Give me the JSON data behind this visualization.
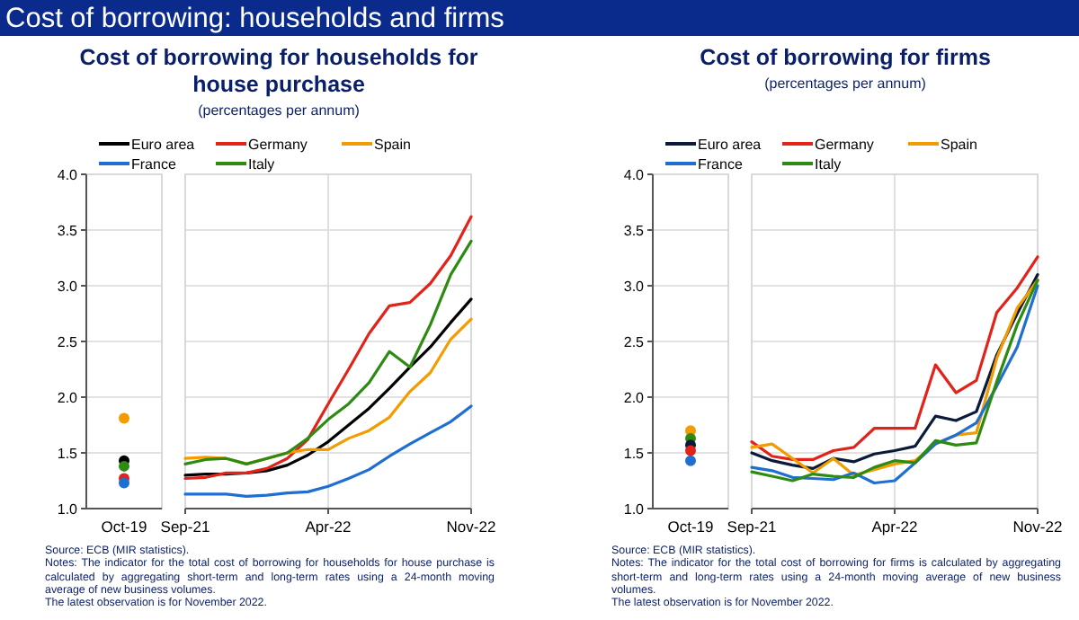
{
  "chart_data": [
    {
      "type": "line",
      "title": "Cost of borrowing for households for house purchase",
      "subtitle": "(percentages per annum)",
      "annotations": [
        "Cost of borrowing: households and firms",
        "Source: ECB (MIR statistics).",
        "Notes: The indicator for the total cost of borrowing for households for house purchase is calculated by aggregating short-term and long-term rates using a 24-month moving average of new business volumes.",
        "The latest observation is for November 2022."
      ],
      "categories": [
        "Oct-19",
        "Sep-21",
        null,
        null,
        null,
        null,
        null,
        null,
        "Apr-22",
        null,
        null,
        null,
        null,
        null,
        null,
        "Nov-22"
      ],
      "series": [
        {
          "name": "Euro area",
          "color": "#000000",
          "values": [
            null,
            1.3,
            1.31,
            1.31,
            1.32,
            1.34,
            1.39,
            1.48,
            1.6,
            1.75,
            1.9,
            2.08,
            2.27,
            2.45,
            2.67,
            2.88
          ]
        },
        {
          "name": "Germany",
          "color": "#e2231a",
          "values": [
            null,
            1.27,
            1.28,
            1.32,
            1.32,
            1.36,
            1.45,
            1.62,
            1.94,
            2.25,
            2.57,
            2.82,
            2.85,
            3.02,
            3.27,
            3.62
          ]
        },
        {
          "name": "Spain",
          "color": "#f29c00",
          "values": [
            null,
            1.45,
            1.46,
            1.45,
            1.4,
            1.45,
            1.5,
            1.53,
            1.53,
            1.63,
            1.7,
            1.82,
            2.05,
            2.22,
            2.52,
            2.7
          ]
        },
        {
          "name": "France",
          "color": "#1f6fd0",
          "values": [
            null,
            1.13,
            1.13,
            1.13,
            1.11,
            1.12,
            1.14,
            1.15,
            1.2,
            1.27,
            1.35,
            1.47,
            1.58,
            1.68,
            1.78,
            1.92
          ]
        },
        {
          "name": "Italy",
          "color": "#2e8b12",
          "values": [
            null,
            1.4,
            1.44,
            1.45,
            1.4,
            1.45,
            1.5,
            1.63,
            1.8,
            1.94,
            2.13,
            2.41,
            2.27,
            2.65,
            3.1,
            3.4
          ]
        },
        {
          "type": "scatter",
          "color": "#f29c00",
          "x": [
            "Oct-19"
          ],
          "values": [
            1.81
          ]
        },
        {
          "type": "scatter",
          "color": "#000000",
          "x": [
            "Oct-19"
          ],
          "values": [
            1.43
          ]
        },
        {
          "type": "scatter",
          "color": "#2e8b12",
          "x": [
            "Oct-19"
          ],
          "values": [
            1.38
          ]
        },
        {
          "type": "scatter",
          "color": "#e2231a",
          "x": [
            "Oct-19"
          ],
          "values": [
            1.27
          ]
        },
        {
          "type": "scatter",
          "color": "#1f6fd0",
          "x": [
            "Oct-19"
          ],
          "values": [
            1.23
          ]
        }
      ],
      "ylim": [
        1.0,
        4.0
      ],
      "yticks": [
        {
          "value": 1.0,
          "label": "1.0"
        },
        1.5,
        {
          "value": 2.0,
          "label": "2.0"
        },
        2.5,
        {
          "value": 3.0,
          "label": "3.0"
        },
        3.5,
        {
          "value": 4.0,
          "label": "4.0"
        }
      ],
      "grid": true,
      "legend": "top",
      "line_style": "solid"
    },
    {
      "type": "line",
      "title": "Cost of borrowing for firms",
      "subtitle": "(percentages per annum)",
      "annotations": [
        "Source: ECB (MIR statistics).",
        "Notes: The indicator for the total cost of borrowing for firms is calculated by aggregating short-term and long-term rates using a 24-month moving average of new business volumes.",
        "The latest observation is for November 2022."
      ],
      "categories": [
        "Oct-19",
        "Sep-21",
        null,
        null,
        null,
        null,
        null,
        null,
        "Apr-22",
        null,
        null,
        null,
        null,
        null,
        null,
        "Nov-22"
      ],
      "series": [
        {
          "name": "Euro area",
          "color": "#0b1a3a",
          "values": [
            null,
            1.5,
            1.43,
            1.39,
            1.36,
            1.45,
            1.42,
            1.49,
            1.52,
            1.56,
            1.83,
            1.79,
            1.87,
            2.38,
            2.75,
            3.1
          ]
        },
        {
          "name": "Germany",
          "color": "#e2231a",
          "values": [
            null,
            1.6,
            1.47,
            1.44,
            1.44,
            1.52,
            1.55,
            1.72,
            1.72,
            1.72,
            2.29,
            2.04,
            2.15,
            2.76,
            2.98,
            3.26
          ]
        },
        {
          "name": "Spain",
          "color": "#f29c00",
          "values": [
            null,
            1.55,
            1.58,
            1.45,
            1.32,
            1.45,
            1.3,
            1.35,
            1.4,
            1.43,
            1.58,
            1.66,
            1.68,
            2.35,
            2.8,
            3.05
          ]
        },
        {
          "name": "France",
          "color": "#1f6fd0",
          "values": [
            null,
            1.37,
            1.34,
            1.28,
            1.27,
            1.26,
            1.32,
            1.23,
            1.25,
            1.41,
            1.58,
            1.66,
            1.77,
            2.1,
            2.45,
            3.0
          ]
        },
        {
          "name": "Italy",
          "color": "#2e8b12",
          "values": [
            null,
            1.33,
            1.29,
            1.25,
            1.31,
            1.29,
            1.28,
            1.37,
            1.43,
            1.41,
            1.61,
            1.57,
            1.59,
            2.14,
            2.65,
            3.05
          ]
        },
        {
          "type": "scatter",
          "color": "#f29c00",
          "x": [
            "Oct-19"
          ],
          "values": [
            1.7
          ]
        },
        {
          "type": "scatter",
          "color": "#2e8b12",
          "x": [
            "Oct-19"
          ],
          "values": [
            1.63
          ]
        },
        {
          "type": "scatter",
          "color": "#0b1a3a",
          "x": [
            "Oct-19"
          ],
          "values": [
            1.57
          ]
        },
        {
          "type": "scatter",
          "color": "#e2231a",
          "x": [
            "Oct-19"
          ],
          "values": [
            1.52
          ]
        },
        {
          "type": "scatter",
          "color": "#1f6fd0",
          "x": [
            "Oct-19"
          ],
          "values": [
            1.43
          ]
        }
      ],
      "ylim": [
        1.0,
        4.0
      ],
      "yticks": [
        {
          "value": 1.0,
          "label": "1.0"
        },
        1.5,
        {
          "value": 2.0,
          "label": "2.0"
        },
        2.5,
        {
          "value": 3.0,
          "label": "3.0"
        },
        3.5,
        {
          "value": 4.0,
          "label": "4.0"
        }
      ],
      "grid": true,
      "legend": "top",
      "line_style": "solid"
    }
  ]
}
